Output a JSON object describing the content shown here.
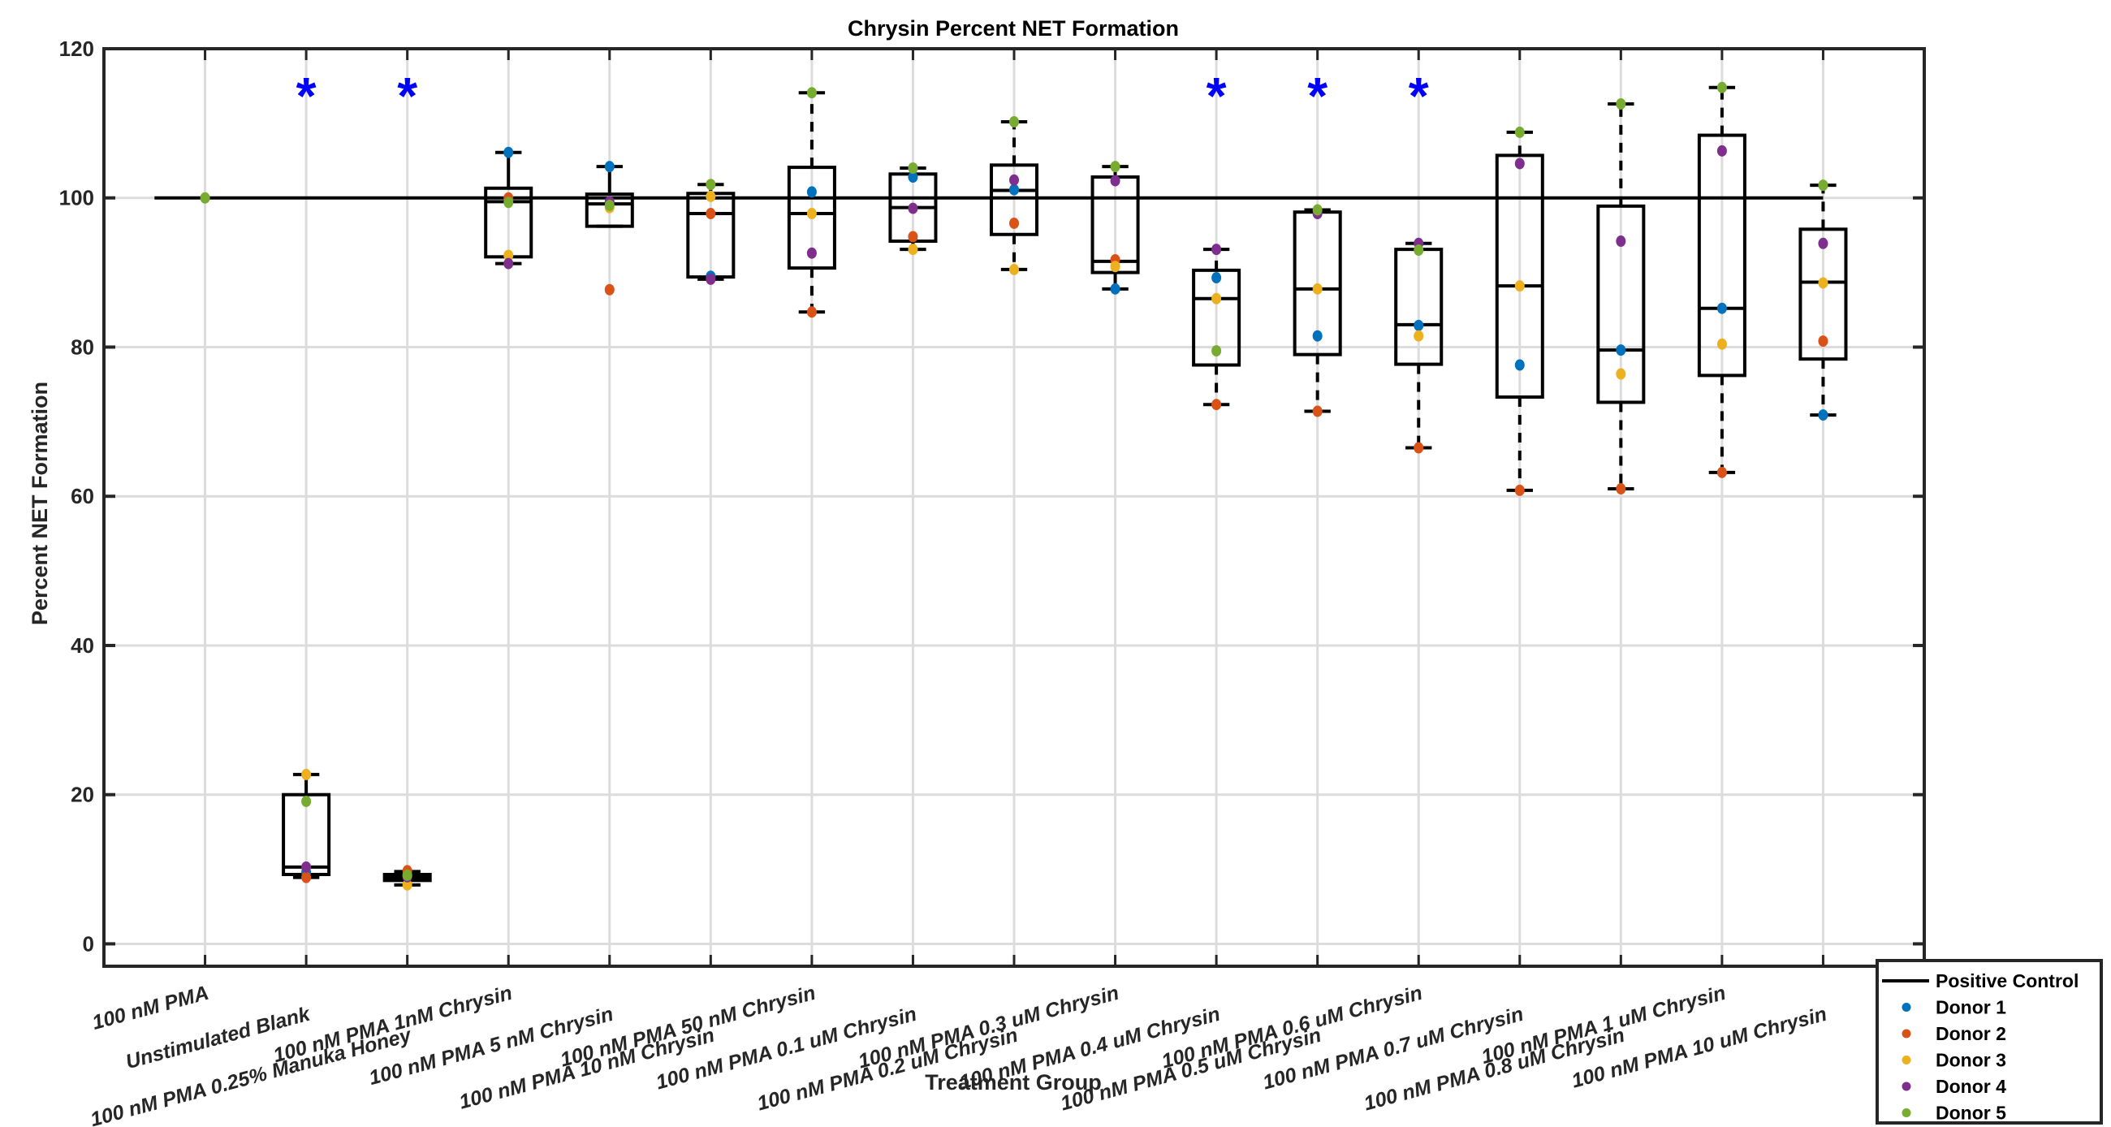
{
  "chart_data": {
    "type": "box",
    "title": "Chrysin Percent NET Formation",
    "xlabel": "Treatment Group",
    "ylabel": "Percent NET Formation",
    "ylim": [
      -3,
      120
    ],
    "yticks": [
      0,
      20,
      40,
      60,
      80,
      100,
      120
    ],
    "grid": true,
    "legend_position": "outside-bottom-right",
    "categories": [
      "100 nM PMA",
      "Unstimulated Blank",
      "100 nM PMA 0.25% Manuka Honey",
      "100 nM PMA 1nM Chrysin",
      "100 nM PMA 5 nM Chrysin",
      "100 nM PMA 10 nM Chrysin",
      "100 nM PMA 50 nM Chrysin",
      "100 nM PMA 0.1 uM Chrysin",
      "100 nM PMA 0.2 uM Chrysin",
      "100 nM PMA 0.3 uM Chrysin",
      "100 nM PMA 0.4 uM Chrysin",
      "100 nM PMA 0.5 uM Chrysin",
      "100 nM PMA 0.6 uM Chrysin",
      "100 nM PMA 0.7 uM Chrysin",
      "100 nM PMA 0.8 uM Chrysin",
      "100 nM PMA 1 uM Chrysin",
      "100 nM PMA 10 uM Chrysin"
    ],
    "boxes": [
      null,
      {
        "q1": 9.3,
        "median": 10.3,
        "q3": 20.0,
        "whisker_low": 8.9,
        "whisker_high": 22.7,
        "dashed": false
      },
      {
        "q1": 8.5,
        "median": 8.9,
        "q3": 9.3,
        "whisker_low": 7.9,
        "whisker_high": 9.7,
        "dashed": false
      },
      {
        "q1": 92.1,
        "median": 99.5,
        "q3": 101.3,
        "whisker_low": 91.2,
        "whisker_high": 106.1,
        "dashed": false
      },
      {
        "q1": 96.2,
        "median": 99.2,
        "q3": 100.5,
        "whisker_low": 96.2,
        "whisker_high": 104.2,
        "dashed": false
      },
      {
        "q1": 89.4,
        "median": 97.9,
        "q3": 100.6,
        "whisker_low": 89.1,
        "whisker_high": 101.8,
        "dashed": false
      },
      {
        "q1": 90.6,
        "median": 97.9,
        "q3": 104.1,
        "whisker_low": 84.7,
        "whisker_high": 114.1,
        "dashed": true
      },
      {
        "q1": 94.2,
        "median": 98.7,
        "q3": 103.2,
        "whisker_low": 93.1,
        "whisker_high": 104.0,
        "dashed": false
      },
      {
        "q1": 95.1,
        "median": 101.0,
        "q3": 104.4,
        "whisker_low": 90.4,
        "whisker_high": 110.2,
        "dashed": true
      },
      {
        "q1": 90.0,
        "median": 91.5,
        "q3": 102.8,
        "whisker_low": 87.8,
        "whisker_high": 104.2,
        "dashed": false
      },
      {
        "q1": 77.6,
        "median": 86.5,
        "q3": 90.3,
        "whisker_low": 72.3,
        "whisker_high": 93.1,
        "dashed": true
      },
      {
        "q1": 79.0,
        "median": 87.8,
        "q3": 98.1,
        "whisker_low": 71.4,
        "whisker_high": 98.4,
        "dashed": true
      },
      {
        "q1": 77.7,
        "median": 83.0,
        "q3": 93.1,
        "whisker_low": 66.5,
        "whisker_high": 93.9,
        "dashed": true
      },
      {
        "q1": 73.3,
        "median": 88.2,
        "q3": 105.7,
        "whisker_low": 60.8,
        "whisker_high": 108.8,
        "dashed": true
      },
      {
        "q1": 72.6,
        "median": 79.6,
        "q3": 98.9,
        "whisker_low": 61.0,
        "whisker_high": 112.6,
        "dashed": true
      },
      {
        "q1": 76.2,
        "median": 85.2,
        "q3": 108.4,
        "whisker_low": 63.2,
        "whisker_high": 114.8,
        "dashed": true
      },
      {
        "q1": 78.4,
        "median": 88.7,
        "q3": 95.8,
        "whisker_low": 70.9,
        "whisker_high": 101.7,
        "dashed": true
      }
    ],
    "series": [
      {
        "name": "Donor 1",
        "color": "#0072BD",
        "values": [
          null,
          9.6,
          9.2,
          106.1,
          104.2,
          89.5,
          100.8,
          102.8,
          101.1,
          87.8,
          89.3,
          81.5,
          82.9,
          77.6,
          79.6,
          85.2,
          70.9
        ]
      },
      {
        "name": "Donor 2",
        "color": "#D95319",
        "values": [
          null,
          8.9,
          9.8,
          100.0,
          87.7,
          97.9,
          84.7,
          94.8,
          96.6,
          91.7,
          72.3,
          71.4,
          66.5,
          60.8,
          61.0,
          63.2,
          80.8
        ]
      },
      {
        "name": "Donor 3",
        "color": "#EDB120",
        "values": [
          null,
          22.7,
          7.9,
          92.3,
          98.7,
          100.2,
          97.9,
          93.1,
          90.4,
          90.8,
          86.5,
          87.8,
          81.5,
          88.2,
          76.4,
          80.4,
          88.6
        ]
      },
      {
        "name": "Donor 4",
        "color": "#7E2F8E",
        "values": [
          null,
          10.3,
          9.0,
          91.2,
          99.5,
          89.1,
          92.6,
          98.6,
          102.4,
          102.3,
          93.1,
          97.9,
          93.9,
          104.6,
          94.2,
          106.3,
          93.9
        ]
      },
      {
        "name": "Donor 5",
        "color": "#77AC30",
        "values": [
          100.0,
          19.1,
          9.2,
          99.4,
          99.0,
          101.8,
          114.1,
          104.0,
          110.2,
          104.2,
          79.5,
          98.4,
          93.0,
          108.8,
          112.6,
          114.8,
          101.7
        ]
      }
    ],
    "positive_control": {
      "name": "Positive Control",
      "value": 100,
      "color": "#000000",
      "x_range": [
        0.5,
        17
      ]
    },
    "significance_markers": {
      "symbol": "*",
      "color": "#0000FF",
      "y": 114.8,
      "categories": [
        2,
        3,
        11,
        12,
        13
      ]
    }
  },
  "legend": {
    "items": [
      {
        "label": "Positive Control",
        "type": "line",
        "color": "#000000"
      },
      {
        "label": "Donor 1",
        "type": "dot",
        "color": "#0072BD"
      },
      {
        "label": "Donor 2",
        "type": "dot",
        "color": "#D95319"
      },
      {
        "label": "Donor 3",
        "type": "dot",
        "color": "#EDB120"
      },
      {
        "label": "Donor 4",
        "type": "dot",
        "color": "#7E2F8E"
      },
      {
        "label": "Donor 5",
        "type": "dot",
        "color": "#77AC30"
      }
    ]
  }
}
